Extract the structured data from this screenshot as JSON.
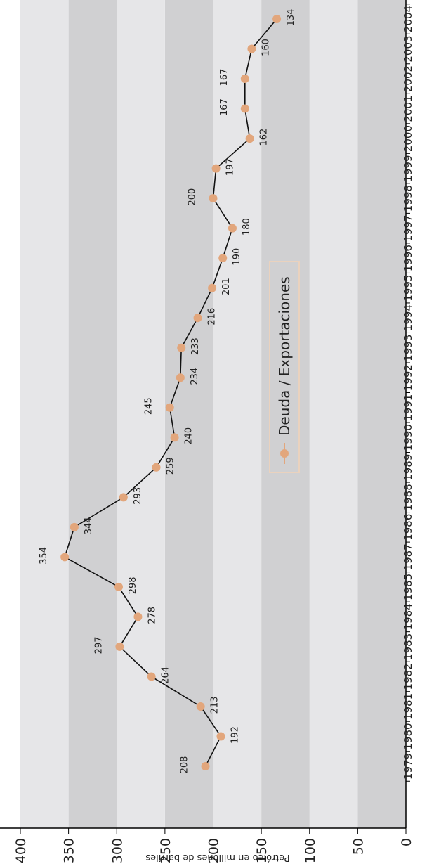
{
  "chart_data": {
    "type": "line",
    "orientation": "rotated-90-clockwise",
    "ylabel": "Petróleo en millones de barriles",
    "ylim": [
      0,
      400
    ],
    "yticks": [
      0,
      50,
      100,
      150,
      200,
      250,
      300,
      350,
      400
    ],
    "x": [
      "1979",
      "1980",
      "1981",
      "1982",
      "1983",
      "1984",
      "1985",
      "1987",
      "1986",
      "1988",
      "1989",
      "1990",
      "1991",
      "1992",
      "1993",
      "1994",
      "1995",
      "1996",
      "1997",
      "1998",
      "1999",
      "2000",
      "2001",
      "2002",
      "2003",
      "2004"
    ],
    "series": [
      {
        "name": "Deuda / Exportaciones",
        "values": [
          208,
          192,
          213,
          264,
          297,
          278,
          298,
          354,
          344,
          293,
          259,
          240,
          245,
          234,
          233,
          216,
          201,
          190,
          180,
          200,
          197,
          162,
          167,
          167,
          160,
          134
        ],
        "color": "#e2a67c"
      }
    ],
    "grid": true,
    "legend_position": "center"
  }
}
